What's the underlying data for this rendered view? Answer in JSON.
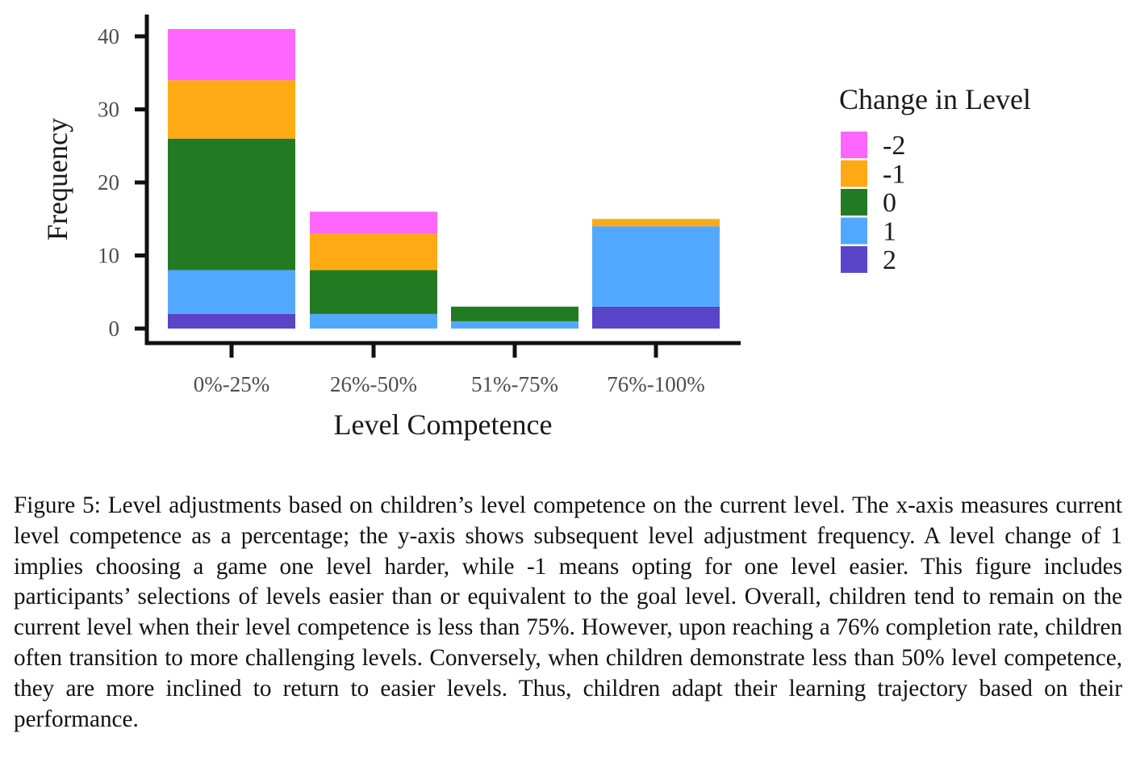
{
  "chart_data": {
    "type": "bar",
    "stacked": true,
    "xlabel": "Level Competence",
    "ylabel": "Frequency",
    "ylim": [
      0,
      40
    ],
    "yticks": [
      0,
      10,
      20,
      30,
      40
    ],
    "categories": [
      "0%-25%",
      "26%-50%",
      "51%-75%",
      "76%-100%"
    ],
    "legend": {
      "title": "Change in Level",
      "position": "right"
    },
    "series": [
      {
        "name": "-2",
        "color": "#FF66FF",
        "values": [
          7,
          3,
          0,
          0
        ]
      },
      {
        "name": "-1",
        "color": "#FFAA14",
        "values": [
          8,
          5,
          0,
          1
        ]
      },
      {
        "name": "0",
        "color": "#227B22",
        "values": [
          18,
          6,
          2,
          0
        ]
      },
      {
        "name": "1",
        "color": "#52A8FF",
        "values": [
          6,
          2,
          1,
          11
        ]
      },
      {
        "name": "2",
        "color": "#5A44C8",
        "values": [
          2,
          0,
          0,
          3
        ]
      }
    ],
    "grid": false
  },
  "caption": {
    "text": "Figure 5: Level adjustments based on children’s level competence on the current level. The x-axis measures current level competence as a percentage; the y-axis shows subsequent level adjustment frequency. A level change of 1 implies choosing a game one level harder, while -1 means opting for one level easier. This figure includes participants’ selections of levels easier than or equivalent to the goal level. Overall, children tend to remain on the current level when their level competence is less than 75%. However, upon reaching a 76% completion rate, children often transition to more challenging levels. Conversely, when children demonstrate less than 50% level competence, they are more inclined to return to easier levels. Thus, children adapt their learning trajectory based on their performance."
  }
}
